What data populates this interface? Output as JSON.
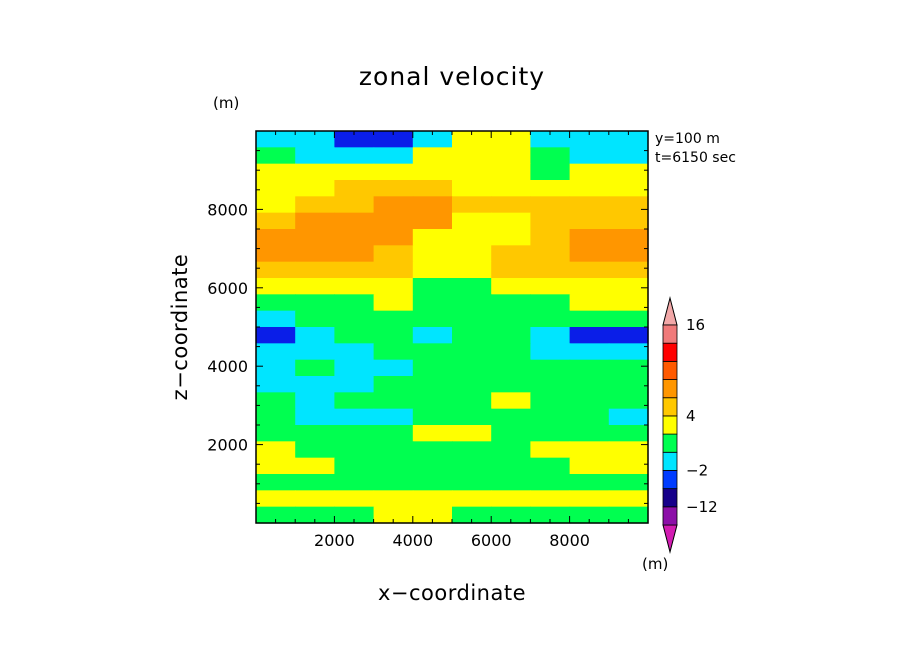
{
  "chart_data": {
    "type": "heatmap",
    "title": "zonal velocity",
    "xlabel": "x−coordinate",
    "ylabel": "z−coordinate",
    "x_unit": "(m)",
    "y_unit": "(m)",
    "colorbar_unit": "(m)",
    "xlim": [
      0,
      10000
    ],
    "ylim": [
      0,
      10000
    ],
    "x_ticks": [
      2000,
      4000,
      6000,
      8000
    ],
    "y_ticks": [
      2000,
      4000,
      6000,
      8000
    ],
    "annotations": [
      "y=100 m",
      "t=6150 sec"
    ],
    "colorbar": {
      "colors": [
        "#d21cb2",
        "#8c0fa8",
        "#16008a",
        "#003cff",
        "#00e5ff",
        "#00ff50",
        "#ffff00",
        "#ffc800",
        "#ff9600",
        "#ff5a00",
        "#ff0000",
        "#f07a7a",
        "#f2a8a8"
      ],
      "labeled_levels": [
        "16",
        "4",
        "−2",
        "−12"
      ],
      "extend": "both"
    },
    "field": {
      "z_levels": [
        9700,
        9300,
        8900,
        8500,
        8100,
        7700,
        7300,
        6900,
        6500,
        6100,
        5700,
        5300,
        4900,
        4500,
        4100,
        3700,
        3300,
        2900,
        2500,
        2100,
        1700,
        1300,
        900,
        500
      ],
      "rows": [
        [
          "cyan",
          "cyan",
          "blue",
          "blue",
          "cyan",
          "yellow",
          "yellow",
          "cyan",
          "cyan",
          "cyan"
        ],
        [
          "green",
          "cyan",
          "cyan",
          "cyan",
          "yellow",
          "yellow",
          "yellow",
          "green",
          "cyan",
          "cyan"
        ],
        [
          "yellow",
          "yellow",
          "yellow",
          "yellow",
          "yellow",
          "yellow",
          "yellow",
          "green",
          "yellow",
          "yellow"
        ],
        [
          "yellow",
          "yellow",
          "gold",
          "gold",
          "gold",
          "yellow",
          "yellow",
          "yellow",
          "yellow",
          "yellow"
        ],
        [
          "yellow",
          "gold",
          "gold",
          "orange",
          "orange",
          "gold",
          "gold",
          "gold",
          "gold",
          "gold"
        ],
        [
          "gold",
          "orange",
          "orange",
          "orange",
          "orange",
          "yellow",
          "yellow",
          "gold",
          "gold",
          "gold"
        ],
        [
          "orange",
          "orange",
          "orange",
          "orange",
          "yellow",
          "yellow",
          "yellow",
          "gold",
          "orange",
          "orange"
        ],
        [
          "orange",
          "orange",
          "orange",
          "gold",
          "yellow",
          "yellow",
          "gold",
          "gold",
          "orange",
          "orange"
        ],
        [
          "gold",
          "gold",
          "gold",
          "gold",
          "yellow",
          "yellow",
          "gold",
          "gold",
          "gold",
          "gold"
        ],
        [
          "yellow",
          "yellow",
          "yellow",
          "yellow",
          "green",
          "green",
          "yellow",
          "yellow",
          "yellow",
          "yellow"
        ],
        [
          "green",
          "green",
          "green",
          "yellow",
          "green",
          "green",
          "green",
          "green",
          "yellow",
          "yellow"
        ],
        [
          "cyan",
          "green",
          "green",
          "green",
          "green",
          "green",
          "green",
          "green",
          "green",
          "green"
        ],
        [
          "blue",
          "cyan",
          "green",
          "green",
          "cyan",
          "green",
          "green",
          "cyan",
          "blue",
          "blue"
        ],
        [
          "cyan",
          "cyan",
          "cyan",
          "green",
          "green",
          "green",
          "green",
          "cyan",
          "cyan",
          "cyan"
        ],
        [
          "cyan",
          "green",
          "cyan",
          "cyan",
          "green",
          "green",
          "green",
          "green",
          "green",
          "green"
        ],
        [
          "cyan",
          "cyan",
          "cyan",
          "green",
          "green",
          "green",
          "green",
          "green",
          "green",
          "green"
        ],
        [
          "green",
          "cyan",
          "green",
          "green",
          "green",
          "green",
          "yellow",
          "green",
          "green",
          "green"
        ],
        [
          "green",
          "cyan",
          "cyan",
          "cyan",
          "green",
          "green",
          "green",
          "green",
          "green",
          "cyan"
        ],
        [
          "green",
          "green",
          "green",
          "green",
          "yellow",
          "yellow",
          "green",
          "green",
          "green",
          "green"
        ],
        [
          "yellow",
          "green",
          "green",
          "green",
          "green",
          "green",
          "green",
          "yellow",
          "yellow",
          "yellow"
        ],
        [
          "yellow",
          "yellow",
          "green",
          "green",
          "green",
          "green",
          "green",
          "green",
          "yellow",
          "yellow"
        ],
        [
          "green",
          "green",
          "green",
          "green",
          "green",
          "green",
          "green",
          "green",
          "green",
          "green"
        ],
        [
          "yellow",
          "yellow",
          "yellow",
          "yellow",
          "yellow",
          "yellow",
          "yellow",
          "yellow",
          "yellow",
          "yellow"
        ],
        [
          "green",
          "green",
          "green",
          "yellow",
          "yellow",
          "green",
          "green",
          "green",
          "green",
          "green"
        ]
      ]
    }
  },
  "palette": {
    "cyan": "#00e5ff",
    "blue": "#0a1ee8",
    "green": "#00ff50",
    "yellow": "#ffff00",
    "gold": "#ffc800",
    "orange": "#ff9600"
  }
}
